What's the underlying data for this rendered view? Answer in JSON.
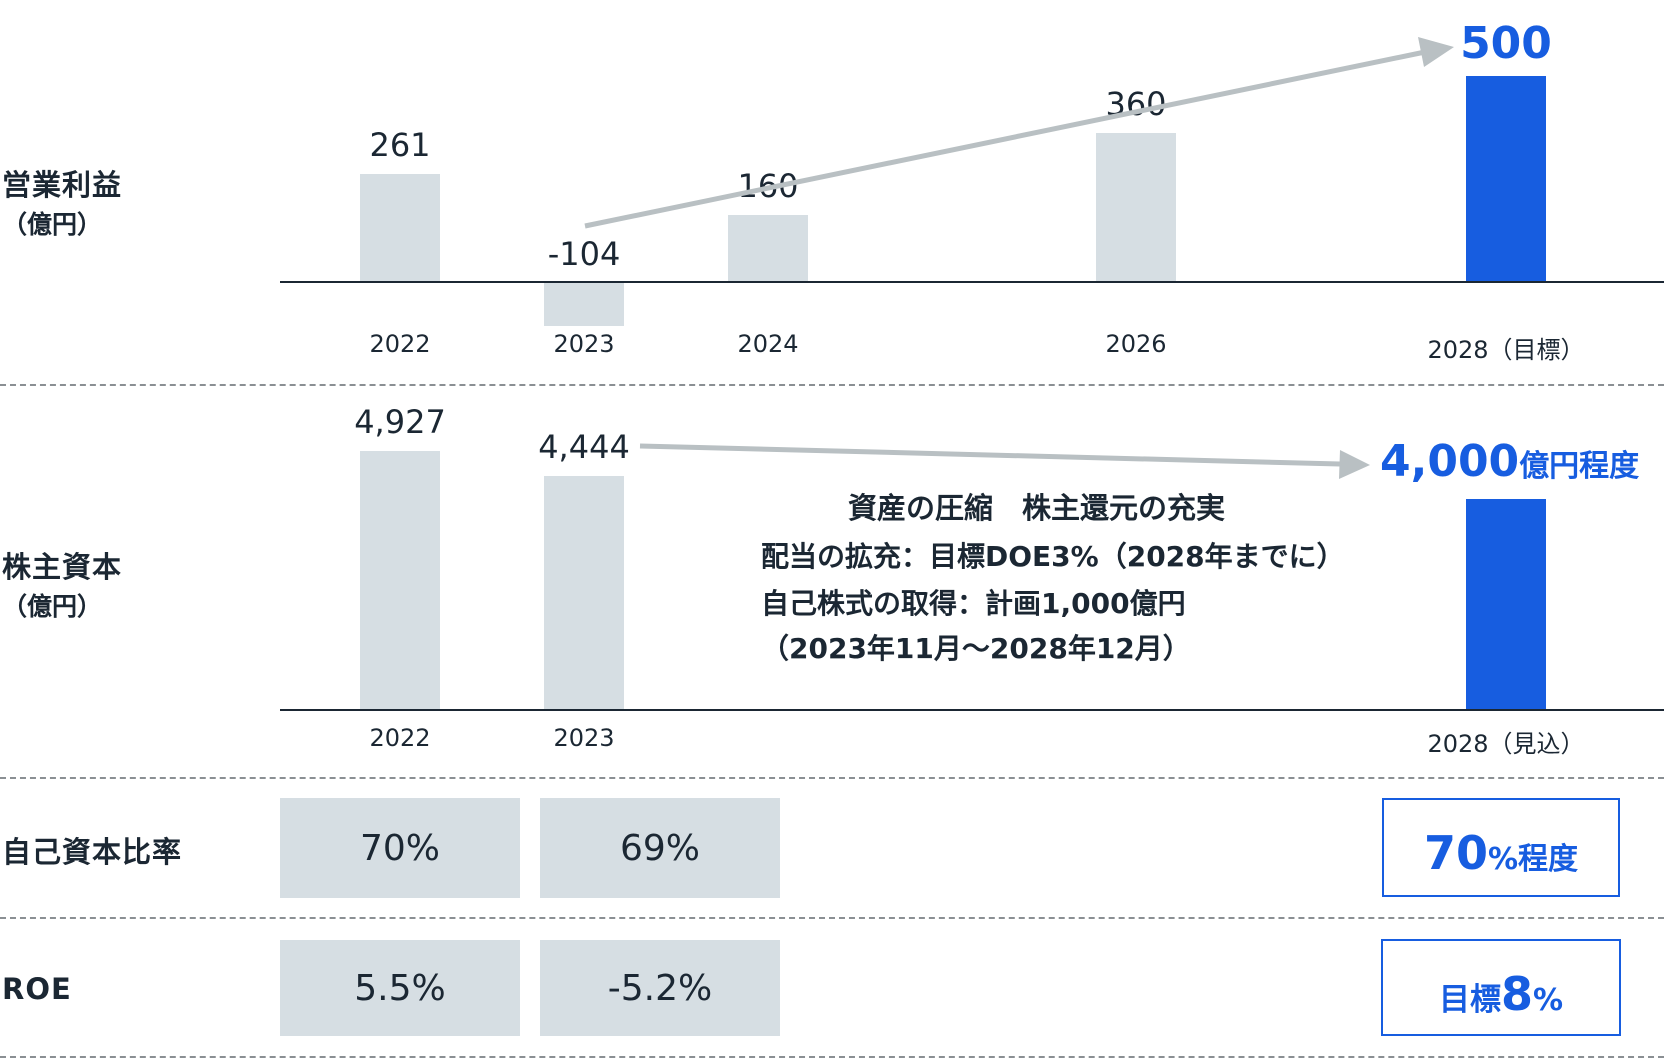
{
  "colors": {
    "highlight": "#175de0",
    "bar": "#d6dee3",
    "arrow": "#b9c0c3",
    "text": "#1b2733"
  },
  "rows": {
    "op_income": {
      "label": "営業利益",
      "unit": "（億円）"
    },
    "equity": {
      "label": "株主資本",
      "unit": "（億円）"
    },
    "equity_ratio": {
      "label": "自己資本比率"
    },
    "roe": {
      "label": "ROE"
    }
  },
  "chart_data": [
    {
      "type": "bar",
      "title": "営業利益",
      "ylabel": "（億円）",
      "categories": [
        "2022",
        "2023",
        "2024",
        "2026",
        "2028（目標）"
      ],
      "values": [
        261,
        -104,
        160,
        360,
        500
      ],
      "value_labels": [
        "261",
        "-104",
        "160",
        "360",
        "500"
      ],
      "highlight": [
        false,
        false,
        false,
        false,
        true
      ],
      "trend_arrow": {
        "from": "2023",
        "to": "2028（目標）"
      }
    },
    {
      "type": "bar",
      "title": "株主資本",
      "ylabel": "（億円）",
      "categories": [
        "2022",
        "2023",
        "2028（見込）"
      ],
      "values": [
        4927,
        4444,
        4000
      ],
      "value_labels": [
        "4,927",
        "4,444",
        "4,000"
      ],
      "target_suffix": "億円程度",
      "highlight": [
        false,
        false,
        true
      ],
      "trend_arrow": {
        "from": "2023",
        "to": "2028（見込）"
      }
    }
  ],
  "annotation": {
    "title": "資産の圧縮　株主還元の充実",
    "lines": [
      "配当の拡充：目標DOE3%（2028年までに）",
      "自己株式の取得：計画1,000億円",
      "（2023年11月～2028年12月）"
    ]
  },
  "equity_ratio": {
    "values": [
      "70%",
      "69%"
    ],
    "target_number": "70",
    "target_suffix": "%程度"
  },
  "roe": {
    "values": [
      "5.5%",
      "-5.2%"
    ],
    "target_prefix": "目標 ",
    "target_number": "8",
    "target_suffix": "%"
  }
}
